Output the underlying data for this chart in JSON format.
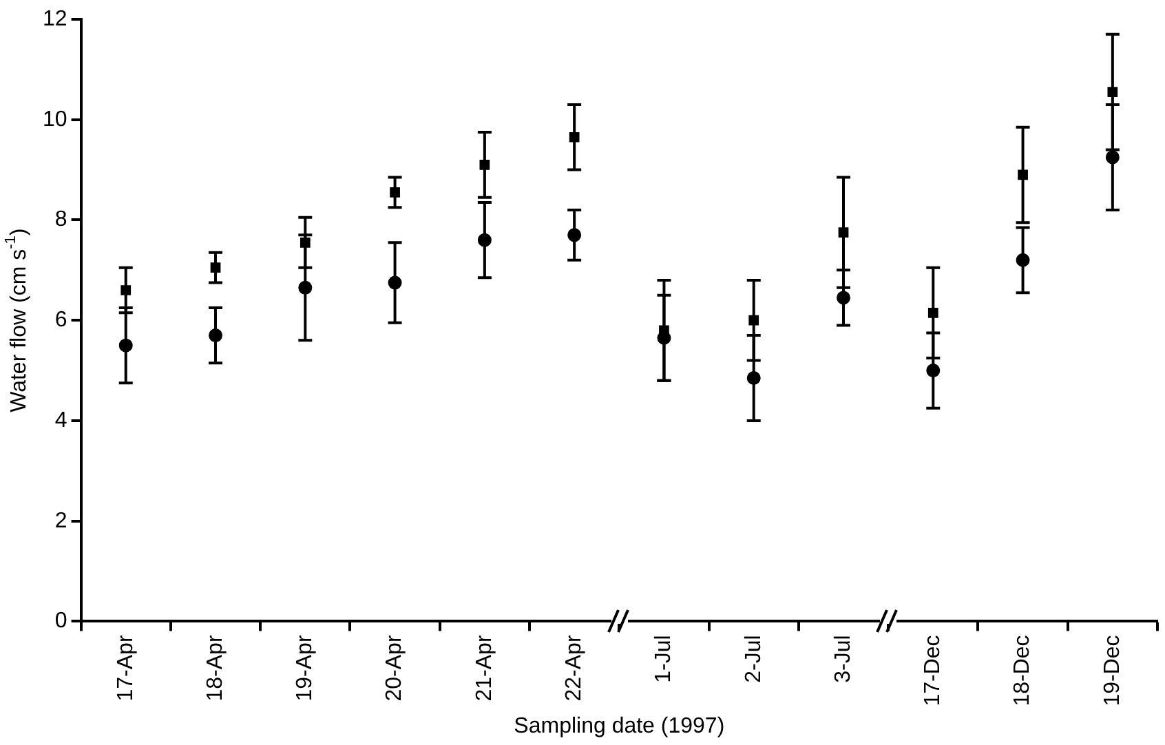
{
  "chart_data": {
    "type": "scatter",
    "xlabel": "Sampling date (1997)",
    "ylabel": "Water flow (cm s$^{-1}$)",
    "categories": [
      "17-Apr",
      "18-Apr",
      "19-Apr",
      "20-Apr",
      "21-Apr",
      "22-Apr",
      "1-Jul",
      "2-Jul",
      "3-Jul",
      "17-Dec",
      "18-Dec",
      "19-Dec"
    ],
    "series": [
      {
        "color": "#000000",
        "marker": "square",
        "values": [
          6.6,
          7.05,
          7.55,
          8.55,
          9.1,
          9.65,
          5.8,
          6.0,
          7.75,
          6.15,
          8.9,
          10.55
        ],
        "errors": [
          0.45,
          0.3,
          0.5,
          0.3,
          0.65,
          0.65,
          1.0,
          0.8,
          1.1,
          0.9,
          0.95,
          1.15
        ]
      },
      {
        "color": "#000000",
        "marker": "circle",
        "values": [
          5.5,
          5.7,
          6.65,
          6.75,
          7.6,
          7.7,
          5.65,
          4.85,
          6.45,
          5.0,
          7.2,
          9.25
        ],
        "errors": [
          0.75,
          0.55,
          1.05,
          0.8,
          0.75,
          0.5,
          0.85,
          0.85,
          0.55,
          0.75,
          0.65,
          1.05
        ]
      }
    ],
    "ylim": [
      0,
      12
    ],
    "yticks": [
      0,
      2,
      4,
      6,
      8,
      10,
      12
    ],
    "grid": false,
    "legend": false
  }
}
